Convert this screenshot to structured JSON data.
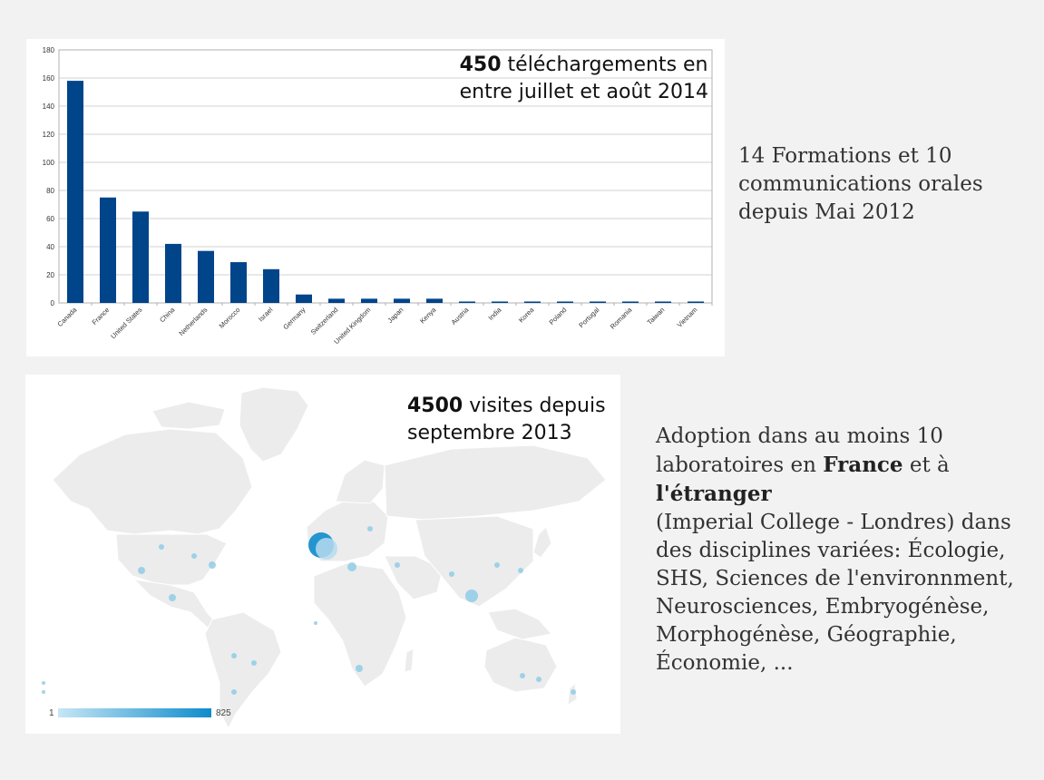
{
  "chart_data": {
    "type": "bar",
    "title_bold": "450",
    "title_rest": " téléchargements en",
    "title_line2": "entre juillet et août 2014",
    "categories": [
      "Canada",
      "France",
      "United States",
      "China",
      "Netherlands",
      "Morocco",
      "Israel",
      "Germany",
      "Switzerland",
      "United Kingdom",
      "Japan",
      "Kenya",
      "Austria",
      "India",
      "Korea",
      "Poland",
      "Portugal",
      "Romania",
      "Taiwan",
      "Vietnam"
    ],
    "values": [
      158,
      75,
      65,
      42,
      37,
      29,
      24,
      6,
      3,
      3,
      3,
      3,
      1,
      1,
      1,
      1,
      1,
      1,
      1,
      1
    ],
    "yticks": [
      0,
      20,
      40,
      60,
      80,
      100,
      120,
      140,
      160,
      180
    ],
    "ylim": [
      0,
      180
    ],
    "grid": true,
    "bar_color": "#00448a"
  },
  "map": {
    "title_bold": "4500",
    "title_rest": " visites depuis",
    "title_line2": "septembre 2013",
    "legend_min": "1",
    "legend_max": "825"
  },
  "formations": {
    "text": "14 Formations et 10 communications orales depuis Mai 2012"
  },
  "adoption": {
    "line1": "Adoption dans au moins 10 laboratoires en ",
    "bold1": "France",
    "mid": " et à ",
    "bold2": "l'étranger",
    "rest": "(Imperial College - Londres) dans des disciplines variées: Écologie, SHS, Sciences de l'environnment, Neurosciences, Embryogénèse, Morphogénèse, Géographie, Économie, ..."
  }
}
